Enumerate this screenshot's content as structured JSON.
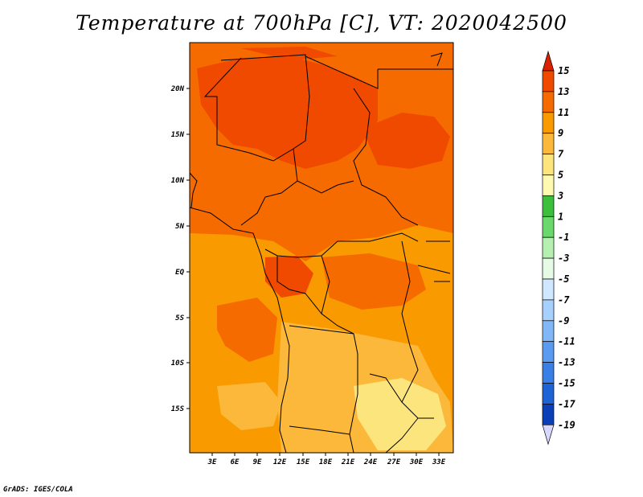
{
  "title": "Temperature at 700hPa [C], VT: 2020042500",
  "credit": "GrADS: IGES/COLA",
  "map": {
    "variable": "Temperature",
    "level": "700hPa",
    "units": "C",
    "valid_time": "2020042500",
    "lat_labels": [
      "20N",
      "15N",
      "10N",
      "5N",
      "EQ",
      "5S",
      "10S",
      "15S"
    ],
    "lon_labels": [
      "3E",
      "6E",
      "9E",
      "12E",
      "15E",
      "18E",
      "21E",
      "24E",
      "27E",
      "30E",
      "33E"
    ]
  },
  "colorbar": {
    "labels": [
      "15",
      "13",
      "11",
      "9",
      "7",
      "5",
      "3",
      "1",
      "-1",
      "-3",
      "-5",
      "-7",
      "-9",
      "-11",
      "-13",
      "-15",
      "-17",
      "-19"
    ],
    "colors": [
      "#d92100",
      "#f04a00",
      "#f66b00",
      "#f89a00",
      "#fbb83a",
      "#fde57e",
      "#fffab0",
      "#3cbf3c",
      "#6ad86a",
      "#b6f0b0",
      "#e6fbe6",
      "#cfe8ff",
      "#a6d1ff",
      "#82b7f7",
      "#5a9af0",
      "#3a7fe6",
      "#1e63d6",
      "#0a3fb8",
      "#04237e",
      "#000c55"
    ],
    "min_arrow_color": "#d7d7ff"
  }
}
